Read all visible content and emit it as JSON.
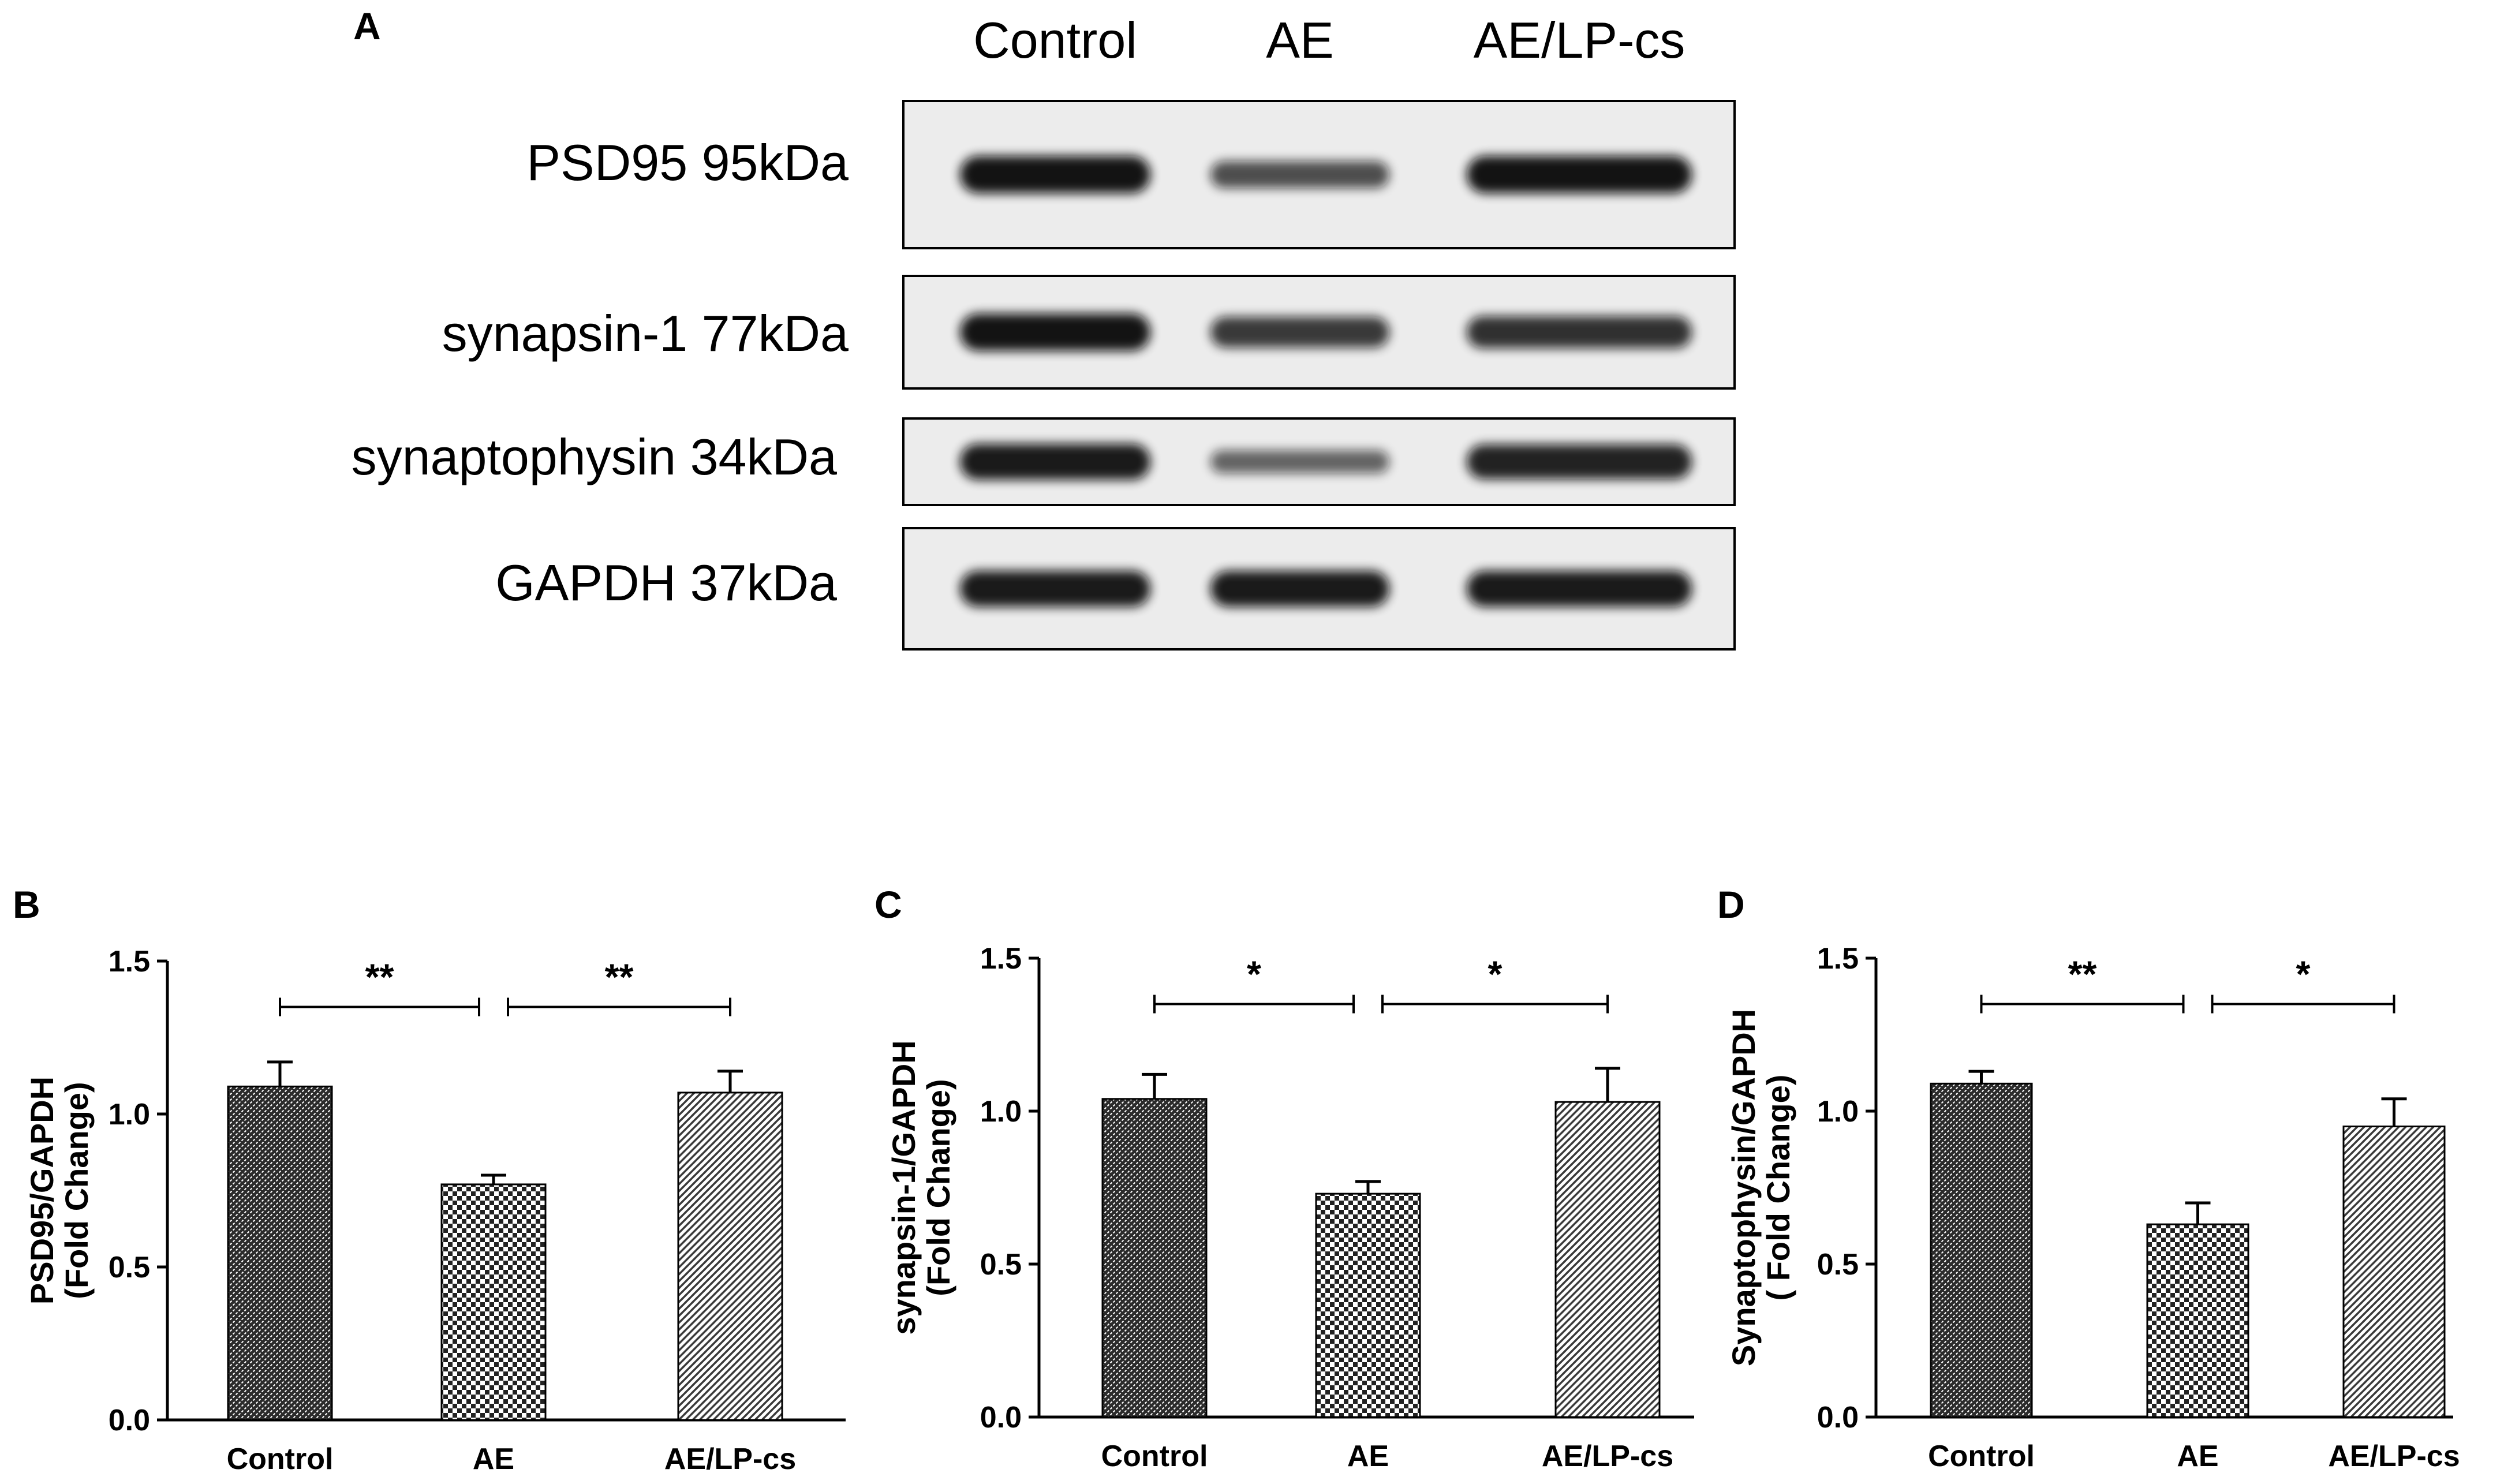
{
  "panel_a": {
    "letter": "A",
    "lanes": [
      "Control",
      "AE",
      "AE/LP-cs"
    ],
    "blots": [
      {
        "protein": "PSD95 95kDa",
        "band_intensity": [
          0.95,
          0.55,
          0.95
        ]
      },
      {
        "protein": "synapsin-1 77kDa",
        "band_intensity": [
          0.95,
          0.7,
          0.75
        ]
      },
      {
        "protein": "synaptophysin  34kDa",
        "band_intensity": [
          0.9,
          0.4,
          0.85
        ]
      },
      {
        "protein": "GAPDH  37kDa",
        "band_intensity": [
          0.9,
          0.9,
          0.9
        ]
      }
    ],
    "colors": {
      "membrane": "#ececec",
      "band": "#111111"
    }
  },
  "chart_data": [
    {
      "panel": "B",
      "type": "bar",
      "categories": [
        "Control",
        "AE",
        "AE/LP-cs"
      ],
      "values": [
        1.09,
        0.77,
        1.07
      ],
      "errors": [
        0.08,
        0.03,
        0.07
      ],
      "ylabel": [
        "PSD95/GAPDH",
        "(Fold Change)"
      ],
      "ylim": [
        0,
        1.5
      ],
      "yticks": [
        "0.0",
        "0.5",
        "1.0",
        "1.5"
      ],
      "bar_patterns": [
        "dense-hatch",
        "checker",
        "diagonal-hatch"
      ],
      "significance": [
        {
          "from": 0,
          "to": 1,
          "label": "**"
        },
        {
          "from": 1,
          "to": 2,
          "label": "**"
        }
      ],
      "grid": false
    },
    {
      "panel": "C",
      "type": "bar",
      "categories": [
        "Control",
        "AE",
        "AE/LP-cs"
      ],
      "values": [
        1.04,
        0.73,
        1.03
      ],
      "errors": [
        0.08,
        0.04,
        0.11
      ],
      "ylabel": [
        "synapsin-1/GAPDH",
        "(Fold Change)"
      ],
      "ylim": [
        0,
        1.5
      ],
      "yticks": [
        "0.0",
        "0.5",
        "1.0",
        "1.5"
      ],
      "bar_patterns": [
        "dense-hatch",
        "checker",
        "diagonal-hatch"
      ],
      "significance": [
        {
          "from": 0,
          "to": 1,
          "label": "*"
        },
        {
          "from": 1,
          "to": 2,
          "label": "*"
        }
      ],
      "grid": false
    },
    {
      "panel": "D",
      "type": "bar",
      "categories": [
        "Control",
        "AE",
        "AE/LP-cs"
      ],
      "values": [
        1.09,
        0.63,
        0.95
      ],
      "errors": [
        0.04,
        0.07,
        0.09
      ],
      "ylabel": [
        "Synaptophysin/GAPDH",
        "( Fold Change)"
      ],
      "ylim": [
        0,
        1.5
      ],
      "yticks": [
        "0.0",
        "0.5",
        "1.0",
        "1.5"
      ],
      "bar_patterns": [
        "dense-hatch",
        "checker",
        "diagonal-hatch"
      ],
      "significance": [
        {
          "from": 0,
          "to": 1,
          "label": "**"
        },
        {
          "from": 1,
          "to": 2,
          "label": "*"
        }
      ],
      "grid": false
    }
  ]
}
